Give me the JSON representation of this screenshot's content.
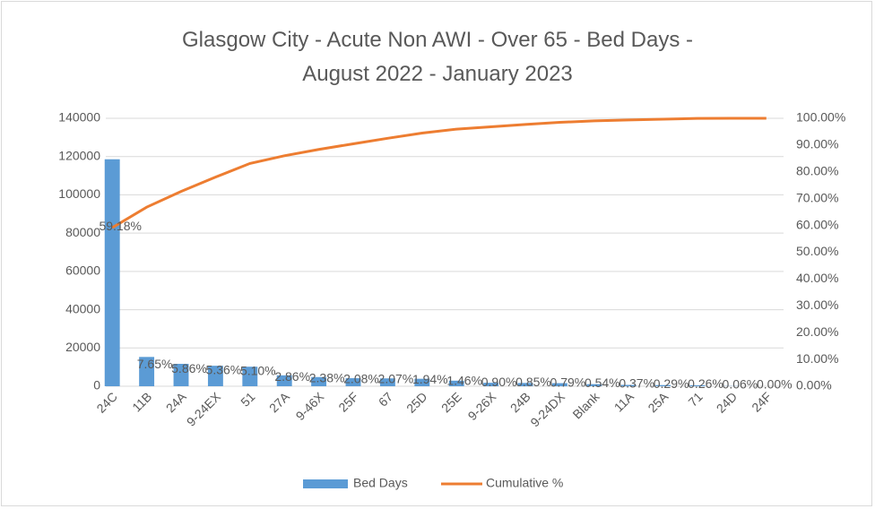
{
  "chart_data": {
    "type": "pareto",
    "title": "Glasgow City - Acute Non AWI - Over 65 - Bed Days - August 2022 - January 2023",
    "categories": [
      "24C",
      "11B",
      "24A",
      "9-24EX",
      "51",
      "27A",
      "9-46X",
      "25F",
      "67",
      "25D",
      "25E",
      "9-26X",
      "24B",
      "9-24DX",
      "Blank",
      "11A",
      "25A",
      "71",
      "24D",
      "24F"
    ],
    "series": [
      {
        "name": "Bed Days",
        "type": "bar",
        "color": "#5b9bd5",
        "values": [
          118600,
          15300,
          11700,
          10700,
          10200,
          5700,
          4800,
          4200,
          4100,
          3900,
          2900,
          1800,
          1700,
          1600,
          1100,
          700,
          600,
          500,
          100,
          0
        ]
      },
      {
        "name": "Cumulative %",
        "type": "line",
        "axis": "y2",
        "color": "#ed7d31",
        "values": [
          59.18,
          66.83,
          72.69,
          78.05,
          83.15,
          86.01,
          88.39,
          90.47,
          92.54,
          94.48,
          95.94,
          96.84,
          97.69,
          98.48,
          99.02,
          99.39,
          99.68,
          99.94,
          100,
          100
        ]
      }
    ],
    "share_values": [
      59.18,
      7.65,
      5.86,
      5.36,
      5.1,
      2.86,
      2.38,
      2.08,
      2.07,
      1.94,
      1.46,
      0.9,
      0.85,
      0.79,
      0.54,
      0.37,
      0.29,
      0.26,
      0.06,
      0.0
    ],
    "share_labels": [
      "59.18%",
      "7.65%",
      "5.86%",
      "5.36%",
      "5.10%",
      "2.86%",
      "2.38%",
      "2.08%",
      "2.07%",
      "1.94%",
      "1.46%",
      "0.90%",
      "0.85%",
      "0.79%",
      "0.54%",
      "0.37%",
      "0.29%",
      "0.26%",
      "0.06%",
      "0.00%"
    ],
    "ylim": [
      0,
      140000
    ],
    "yticks": [
      0,
      20000,
      40000,
      60000,
      80000,
      100000,
      120000,
      140000
    ],
    "y2lim": [
      0,
      100
    ],
    "y2ticks": [
      {
        "value": 0,
        "label": "0.00%"
      },
      {
        "value": 10,
        "label": "10.00%"
      },
      {
        "value": 20,
        "label": "20.00%"
      },
      {
        "value": 30,
        "label": "30.00%"
      },
      {
        "value": 40,
        "label": "40.00%"
      },
      {
        "value": 50,
        "label": "50.00%"
      },
      {
        "value": 60,
        "label": "60.00%"
      },
      {
        "value": 70,
        "label": "70.00%"
      },
      {
        "value": 80,
        "label": "80.00%"
      },
      {
        "value": 90,
        "label": "90.00%"
      },
      {
        "value": 100,
        "label": "100.00%"
      }
    ],
    "grid": true,
    "legend": "bottom"
  }
}
